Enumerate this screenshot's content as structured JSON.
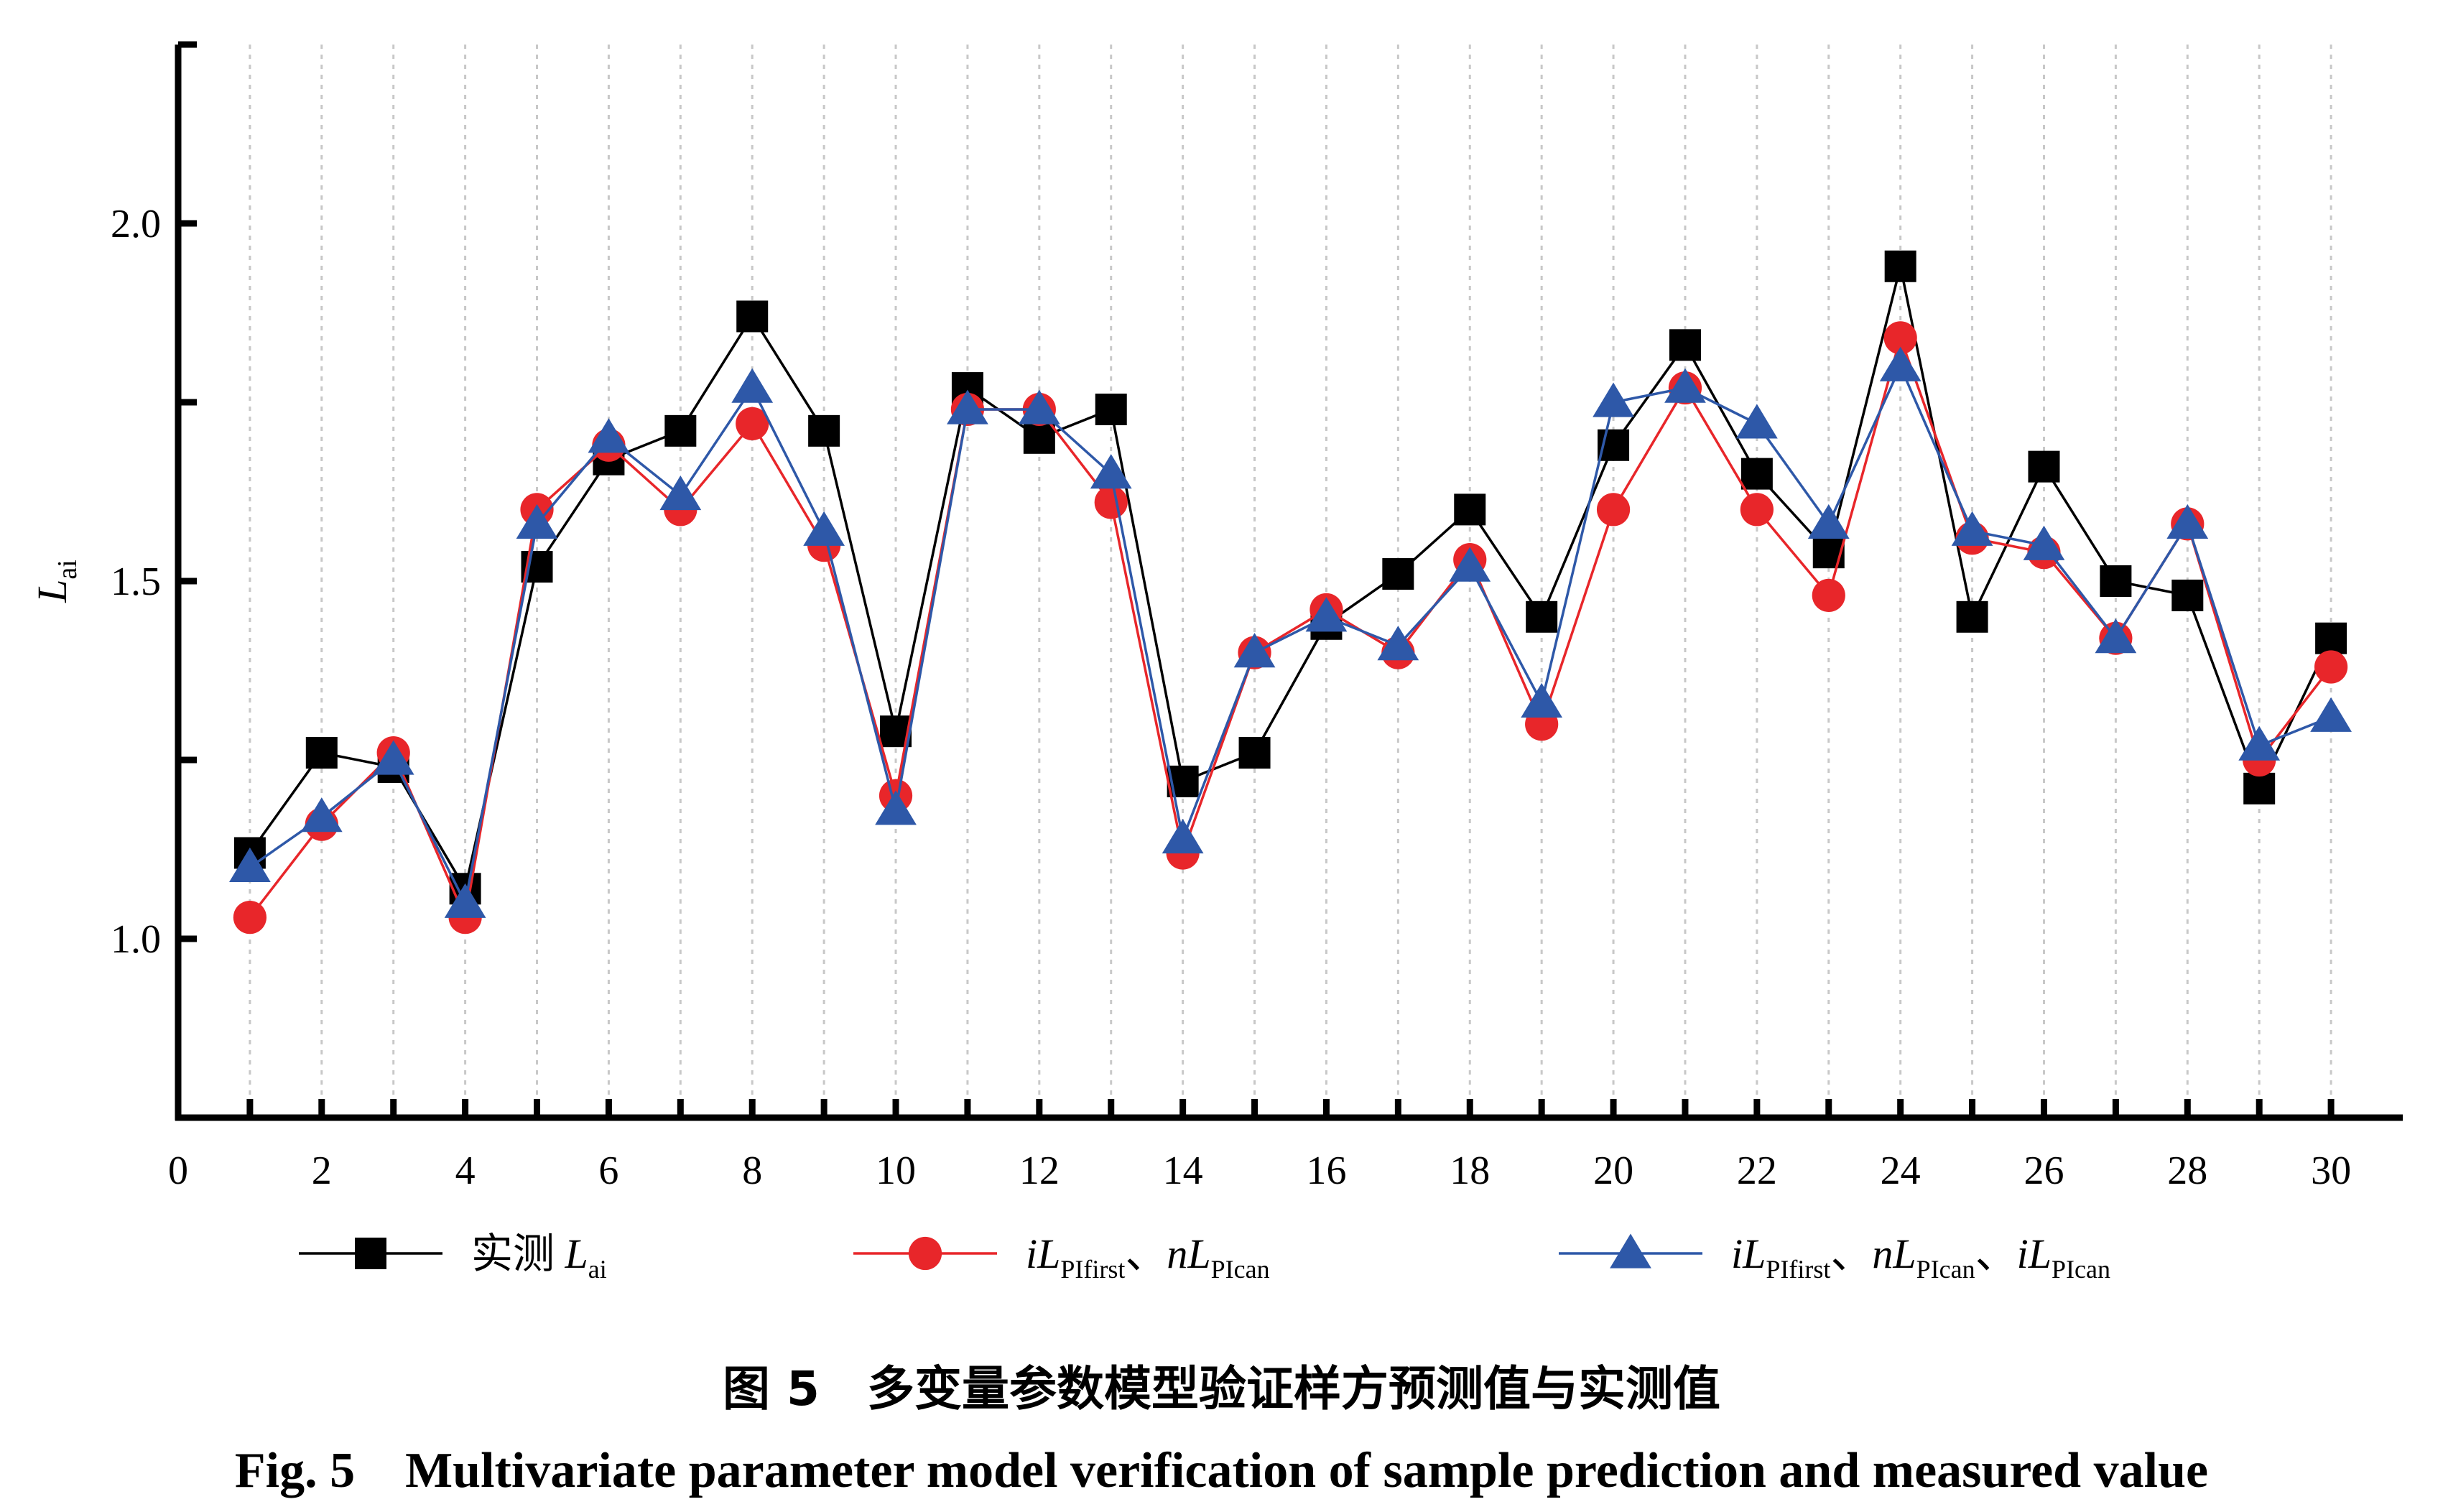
{
  "figure": {
    "caption_cn": "图 5　多变量参数模型验证样方预测值与实测值",
    "caption_en": "Fig. 5　Multivariate parameter model verification of sample prediction and measured value"
  },
  "legend": [
    {
      "marker": "square",
      "color": "#000000",
      "label": "实测 ",
      "italic": "L",
      "sub": "ai",
      "rest": ""
    },
    {
      "marker": "circle",
      "color": "#e8262a",
      "label": "",
      "italic": "iL",
      "sub": "PIfirst",
      "rest": "、nL|PIcan"
    },
    {
      "marker": "triangle",
      "color": "#2e58a8",
      "label": "",
      "italic": "iL",
      "sub": "PIfirst",
      "rest": "、nL|PIcan|、iL|PIcan"
    }
  ],
  "chart_data": {
    "type": "line",
    "ylabel": "L",
    "ylabel_sub": "ai",
    "xlim": [
      0,
      31
    ],
    "ylim": [
      0.75,
      2.25
    ],
    "x_ticks": [
      0,
      2,
      4,
      6,
      8,
      10,
      12,
      14,
      16,
      18,
      20,
      22,
      24,
      26,
      28,
      30
    ],
    "x_minor_ticks": [
      1,
      3,
      5,
      7,
      9,
      11,
      13,
      15,
      17,
      19,
      21,
      23,
      25,
      27,
      29
    ],
    "y_ticks": [
      1.0,
      1.5,
      2.0
    ],
    "y_tick_labels": [
      "1.0",
      "1.5",
      "2.0"
    ],
    "y_minor_ticks": [
      0.75,
      1.25,
      1.75,
      2.25
    ],
    "grid": "vertical dotted at each x",
    "x": [
      1,
      2,
      3,
      4,
      5,
      6,
      7,
      8,
      9,
      10,
      11,
      12,
      13,
      14,
      15,
      16,
      17,
      18,
      19,
      20,
      21,
      22,
      23,
      24,
      25,
      26,
      27,
      28,
      29,
      30
    ],
    "series": [
      {
        "name": "实测 Lai",
        "color": "#000000",
        "marker": "square",
        "values": [
          1.12,
          1.26,
          1.24,
          1.07,
          1.52,
          1.67,
          1.71,
          1.87,
          1.71,
          1.29,
          1.77,
          1.7,
          1.74,
          1.22,
          1.26,
          1.44,
          1.51,
          1.6,
          1.45,
          1.69,
          1.83,
          1.65,
          1.54,
          1.94,
          1.45,
          1.66,
          1.5,
          1.48,
          1.21,
          1.42
        ]
      },
      {
        "name": "iLPIfirst、nLPIcan",
        "color": "#e8262a",
        "marker": "circle",
        "values": [
          1.03,
          1.16,
          1.26,
          1.03,
          1.6,
          1.69,
          1.6,
          1.72,
          1.55,
          1.2,
          1.74,
          1.74,
          1.61,
          1.12,
          1.4,
          1.46,
          1.4,
          1.53,
          1.3,
          1.6,
          1.77,
          1.6,
          1.48,
          1.84,
          1.56,
          1.54,
          1.42,
          1.58,
          1.25,
          1.38
        ]
      },
      {
        "name": "iLPIfirst、nLPIcan、iLPIcan",
        "color": "#2e58a8",
        "marker": "triangle",
        "values": [
          1.1,
          1.17,
          1.25,
          1.05,
          1.58,
          1.7,
          1.62,
          1.77,
          1.57,
          1.18,
          1.74,
          1.74,
          1.65,
          1.14,
          1.4,
          1.45,
          1.41,
          1.52,
          1.33,
          1.75,
          1.77,
          1.72,
          1.58,
          1.8,
          1.57,
          1.55,
          1.42,
          1.58,
          1.27,
          1.31
        ]
      }
    ]
  }
}
